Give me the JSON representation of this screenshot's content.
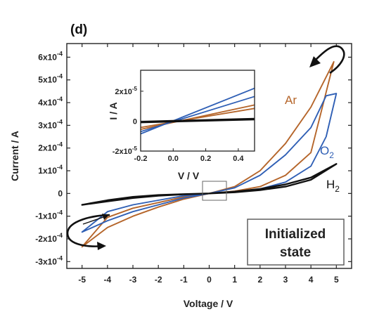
{
  "panel_label": "(d)",
  "state_box": {
    "line1": "Initialized",
    "line2": "state"
  },
  "colors": {
    "Ar": "#b5652a",
    "O2": "#2f5fb5",
    "H2": "#111111",
    "axis": "#222222"
  },
  "chart_data": [
    {
      "type": "line",
      "xlabel": "Voltage / V",
      "ylabel": "Current / A",
      "xlim": [
        -5.6,
        5.6
      ],
      "ylim": [
        -0.00033,
        0.00066
      ],
      "x_ticks": [
        -5,
        -4,
        -3,
        -2,
        -1,
        0,
        1,
        2,
        3,
        4,
        5
      ],
      "x_tick_labels": [
        "-5",
        "-4",
        "-3",
        "-2",
        "-1",
        "0",
        "1",
        "2",
        "3",
        "4",
        "5"
      ],
      "y_ticks": [
        -0.0003,
        -0.0002,
        -0.0001,
        0,
        0.0001,
        0.0002,
        0.0003,
        0.0004,
        0.0005,
        0.0006
      ],
      "y_tick_labels": [
        {
          "mant": "-3x10",
          "exp": "-4"
        },
        {
          "mant": "-2x10",
          "exp": "-4"
        },
        {
          "mant": "-1x10",
          "exp": "-4"
        },
        {
          "mant": "0",
          "exp": ""
        },
        {
          "mant": "1x10",
          "exp": "-4"
        },
        {
          "mant": "2x10",
          "exp": "-4"
        },
        {
          "mant": "3x10",
          "exp": "-4"
        },
        {
          "mant": "4x10",
          "exp": "-4"
        },
        {
          "mant": "5x10",
          "exp": "-4"
        },
        {
          "mant": "6x10",
          "exp": "-4"
        }
      ],
      "series": [
        {
          "name": "Ar",
          "label_main": "Ar",
          "label_sub": "",
          "upper": [
            [
              -5.0,
              -0.000235
            ],
            [
              -4.0,
              -0.00015
            ],
            [
              -3.0,
              -0.0001
            ],
            [
              -2.0,
              -6e-05
            ],
            [
              -1.0,
              -2.5e-05
            ],
            [
              0.0,
              0.0
            ],
            [
              1.0,
              3e-05
            ],
            [
              2.0,
              0.0001
            ],
            [
              3.0,
              0.00022
            ],
            [
              4.0,
              0.00038
            ],
            [
              4.9,
              0.00058
            ]
          ],
          "lower": [
            [
              -5.0,
              -0.000235
            ],
            [
              -4.0,
              -0.000105
            ],
            [
              -3.0,
              -6.5e-05
            ],
            [
              -2.0,
              -4e-05
            ],
            [
              -1.0,
              -1.5e-05
            ],
            [
              0.0,
              0.0
            ],
            [
              1.0,
              1e-05
            ],
            [
              2.0,
              3e-05
            ],
            [
              3.0,
              8e-05
            ],
            [
              4.0,
              0.00018
            ],
            [
              4.9,
              0.00058
            ]
          ]
        },
        {
          "name": "O2",
          "label_main": "O",
          "label_sub": "2",
          "upper": [
            [
              -5.0,
              -0.00017
            ],
            [
              -4.0,
              -0.00012
            ],
            [
              -3.0,
              -8e-05
            ],
            [
              -2.0,
              -5e-05
            ],
            [
              -1.0,
              -2e-05
            ],
            [
              0.0,
              0.0
            ],
            [
              1.0,
              2.5e-05
            ],
            [
              2.0,
              8e-05
            ],
            [
              3.0,
              0.00017
            ],
            [
              4.0,
              0.00029
            ],
            [
              4.6,
              0.00043
            ],
            [
              5.0,
              0.00044
            ]
          ],
          "lower": [
            [
              -5.0,
              -0.00017
            ],
            [
              -4.0,
              -8e-05
            ],
            [
              -3.0,
              -5e-05
            ],
            [
              -2.0,
              -3e-05
            ],
            [
              -1.0,
              -1e-05
            ],
            [
              0.0,
              0.0
            ],
            [
              1.0,
              8e-06
            ],
            [
              2.0,
              2e-05
            ],
            [
              3.0,
              5e-05
            ],
            [
              4.0,
              0.00012
            ],
            [
              4.6,
              0.00025
            ],
            [
              5.0,
              0.00044
            ]
          ]
        },
        {
          "name": "H2",
          "label_main": "H",
          "label_sub": "2",
          "upper": [
            [
              -5.0,
              -5e-05
            ],
            [
              -4.0,
              -3.5e-05
            ],
            [
              -3.0,
              -2e-05
            ],
            [
              -2.0,
              -1e-05
            ],
            [
              -1.0,
              -4e-06
            ],
            [
              0.0,
              0.0
            ],
            [
              1.0,
              8e-06
            ],
            [
              2.0,
              2e-05
            ],
            [
              3.0,
              4e-05
            ],
            [
              4.0,
              7e-05
            ],
            [
              5.0,
              0.00013
            ]
          ],
          "lower": [
            [
              -5.0,
              -5e-05
            ],
            [
              -4.0,
              -3e-05
            ],
            [
              -3.0,
              -1.5e-05
            ],
            [
              -2.0,
              -7e-06
            ],
            [
              -1.0,
              -3e-06
            ],
            [
              0.0,
              0.0
            ],
            [
              1.0,
              5e-06
            ],
            [
              2.0,
              1.5e-05
            ],
            [
              3.0,
              3e-05
            ],
            [
              4.0,
              6e-05
            ],
            [
              5.0,
              0.00013
            ]
          ]
        }
      ]
    },
    {
      "type": "line",
      "inset": true,
      "xlabel": "V / V",
      "ylabel": "I / A",
      "xlim": [
        -0.2,
        0.5
      ],
      "ylim": [
        -2e-05,
        3.4e-05
      ],
      "x_ticks": [
        -0.2,
        0.0,
        0.2,
        0.4
      ],
      "x_tick_labels": [
        "-0.2",
        "0.0",
        "0.2",
        "0.4"
      ],
      "y_ticks": [
        -2e-05,
        0,
        2e-05
      ],
      "y_tick_labels": [
        {
          "mant": "-2x10",
          "exp": "-5"
        },
        {
          "mant": "0",
          "exp": ""
        },
        {
          "mant": "2x10",
          "exp": "-5"
        }
      ],
      "series": [
        {
          "name": "Ar",
          "values": [
            [
              -0.2,
              -5.5e-06
            ],
            [
              0.5,
              1.08e-05
            ]
          ],
          "values2": [
            [
              -0.2,
              -4.2e-06
            ],
            [
              0.5,
              8.5e-06
            ]
          ]
        },
        {
          "name": "O2",
          "values": [
            [
              -0.2,
              -8.5e-06
            ],
            [
              0.5,
              2.2e-05
            ]
          ],
          "values2": [
            [
              -0.2,
              -7e-06
            ],
            [
              0.5,
              1.65e-05
            ]
          ]
        },
        {
          "name": "H2",
          "values": [
            [
              -0.2,
              -8e-07
            ],
            [
              0.5,
              1.2e-06
            ]
          ],
          "values2": [
            [
              -0.2,
              -4e-07
            ],
            [
              0.5,
              1.6e-06
            ]
          ]
        }
      ]
    }
  ]
}
